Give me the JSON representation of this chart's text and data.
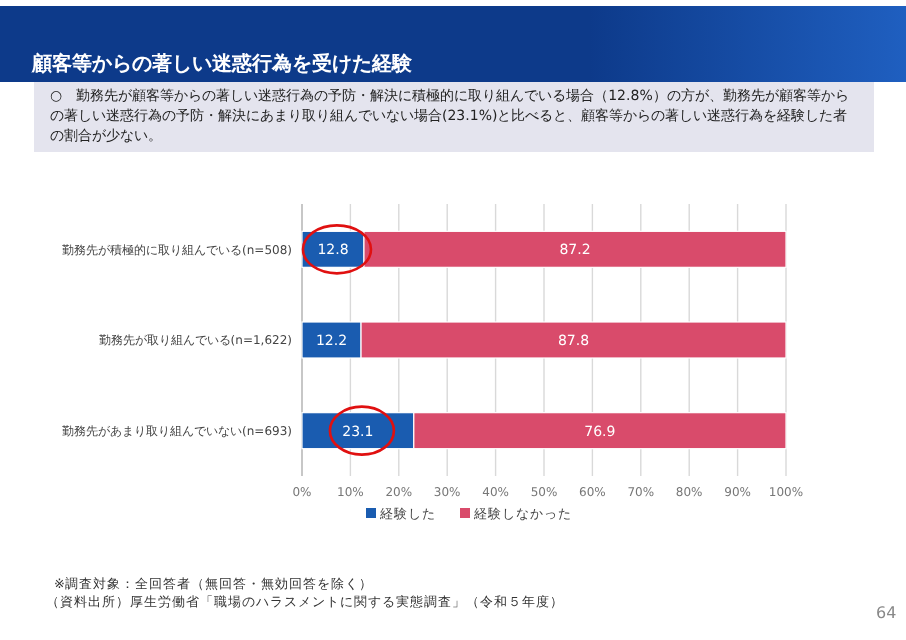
{
  "chart_data": {
    "type": "bar",
    "orientation": "horizontal",
    "stacked": true,
    "title": "顧客等からの著しい迷惑行為を受けた経験",
    "subtitle": "○　勤務先が顧客等からの著しい迷惑行為の予防・解決に積極的に取り組んでいる場合（12.8%）の方が、勤務先が顧客等からの著しい迷惑行為の予防・解決にあまり取り組んでいない場合(23.1%)と比べると、顧客等からの著しい迷惑行為を経験した者の割合が少ない。",
    "categories": [
      "勤務先が積極的に取り組んでいる(n=508)",
      "勤務先が取り組んでいる(n=1,622)",
      "勤務先があまり取り組んでいない(n=693)"
    ],
    "series": [
      {
        "name": "経験した",
        "color": "#1a5cb0",
        "values": [
          12.8,
          12.2,
          23.1
        ]
      },
      {
        "name": "経験しなかった",
        "color": "#d94b6b",
        "values": [
          87.2,
          87.8,
          76.9
        ]
      }
    ],
    "xlim": [
      0,
      100
    ],
    "xticks": [
      {
        "value": 0,
        "label": "0%"
      },
      {
        "value": 10,
        "label": "10%"
      },
      {
        "value": 20,
        "label": "20%"
      },
      {
        "value": 30,
        "label": "30%"
      },
      {
        "value": 40,
        "label": "40%"
      },
      {
        "value": 50,
        "label": "50%"
      },
      {
        "value": 60,
        "label": "60%"
      },
      {
        "value": 70,
        "label": "70%"
      },
      {
        "value": 80,
        "label": "80%"
      },
      {
        "value": 90,
        "label": "90%"
      },
      {
        "value": 100,
        "label": "100%"
      }
    ],
    "grid": "x",
    "legend": "bottom",
    "data_labels": true,
    "annotations": [
      "※調査対象：全回答者（無回答・無効回答を除く）",
      "（資料出所）厚生労働省「職場のハラスメントに関する実態調査」（令和５年度）",
      "64"
    ]
  }
}
